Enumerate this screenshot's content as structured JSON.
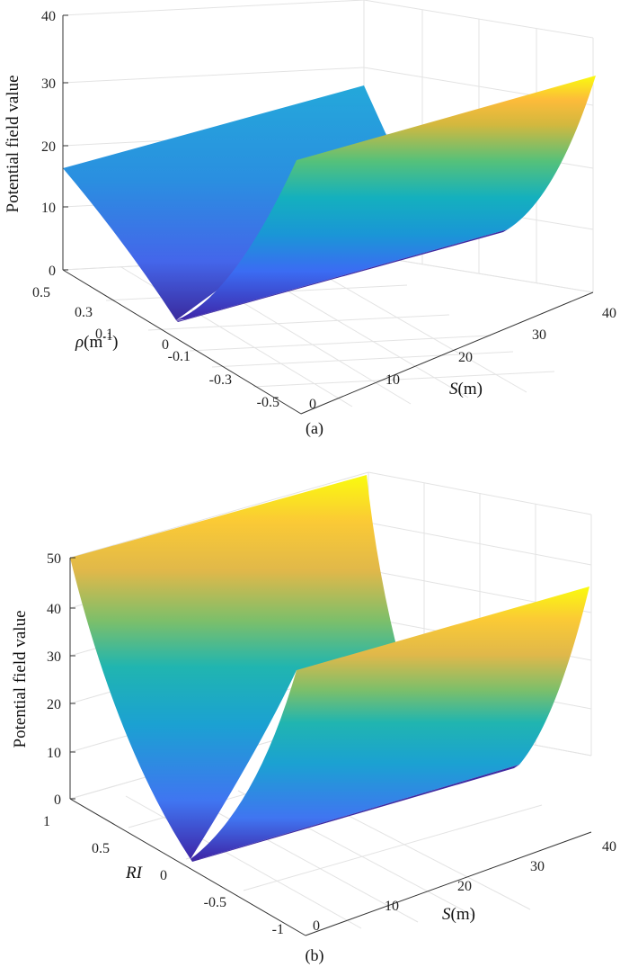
{
  "chart_data": [
    {
      "type": "surface",
      "caption": "(a)",
      "zlabel": "Potential field value",
      "xlabel": "S(m)",
      "xlabel_var": "S",
      "xlabel_unit": "(m)",
      "ylabel_var": "ρ",
      "ylabel_unit": "(m",
      "ylabel_exp": "-1",
      "ylabel_close": ")",
      "x_ticks": [
        "0",
        "10",
        "20",
        "30",
        "40"
      ],
      "y_ticks": [
        "-0.5",
        "-0.3",
        "-0.1",
        "0",
        "0.1",
        "0.3",
        "0.5"
      ],
      "z_ticks": [
        "0",
        "10",
        "20",
        "30",
        "40"
      ],
      "xlim": [
        0,
        40
      ],
      "ylim": [
        -0.5,
        0.5
      ],
      "zlim": [
        0,
        40
      ],
      "surface": {
        "function": "z = 62 * y^2",
        "z_at_y_edges": 15.5,
        "z_min": 0
      },
      "colormap": "parula",
      "grid": true
    },
    {
      "type": "surface",
      "caption": "(b)",
      "zlabel": "Potential field value",
      "xlabel": "S(m)",
      "xlabel_var": "S",
      "xlabel_unit": "(m)",
      "ylabel_var": "RI",
      "x_ticks": [
        "0",
        "10",
        "20",
        "30",
        "40"
      ],
      "y_ticks": [
        "-1",
        "-0.5",
        "0",
        "0.5",
        "1"
      ],
      "z_ticks": [
        "0",
        "10",
        "20",
        "30",
        "40",
        "50"
      ],
      "xlim": [
        0,
        40
      ],
      "ylim": [
        -1,
        1
      ],
      "zlim": [
        0,
        50
      ],
      "surface": {
        "function": "z = 50 * y^2",
        "z_at_y_edges": 50,
        "z_min": 0
      },
      "colormap": "parula",
      "grid": true
    }
  ]
}
